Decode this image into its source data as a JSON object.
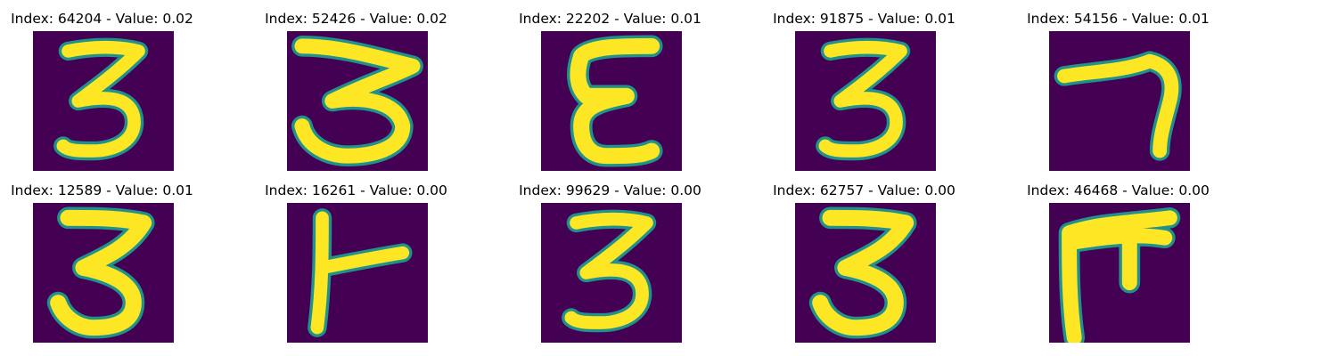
{
  "figure": {
    "background_color": "#440154",
    "stroke_mid_color": "#21918c",
    "stroke_color": "#fde725",
    "panels": [
      {
        "title": "Index: 64204 - Value: 0.02",
        "glyph": "three"
      },
      {
        "title": "Index: 52426 - Value: 0.02",
        "glyph": "three-wide"
      },
      {
        "title": "Index: 22202 - Value: 0.01",
        "glyph": "epsilon"
      },
      {
        "title": "Index: 91875 - Value: 0.01",
        "glyph": "three"
      },
      {
        "title": "Index: 54156 - Value: 0.01",
        "glyph": "seven"
      },
      {
        "title": "Index: 12589 - Value: 0.01",
        "glyph": "three-bold"
      },
      {
        "title": "Index: 16261 - Value: 0.00",
        "glyph": "t-shape"
      },
      {
        "title": "Index: 99629 - Value: 0.00",
        "glyph": "three"
      },
      {
        "title": "Index: 62757 - Value: 0.00",
        "glyph": "three-bold"
      },
      {
        "title": "Index: 46468 - Value: 0.00",
        "glyph": "pi-shape"
      }
    ]
  }
}
